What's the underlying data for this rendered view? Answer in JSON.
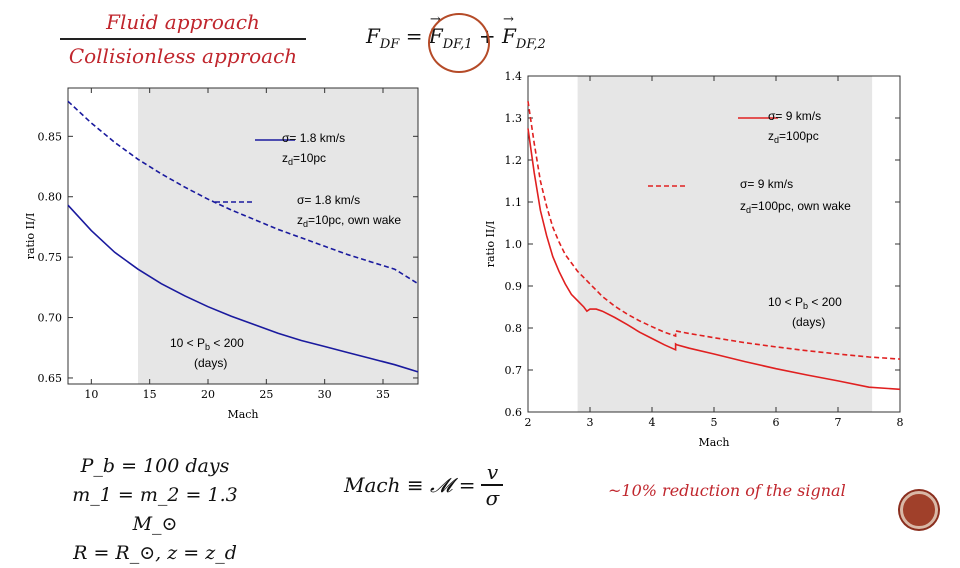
{
  "header": {
    "numerator": "Fluid approach",
    "denominator": "Collisionless approach",
    "force_lhs": "F",
    "force_lhs_sub": "DF",
    "force_eq": " = ",
    "force_term1": "F",
    "force_term1_sub": "DF,1",
    "force_plus": " + ",
    "force_term2": "F",
    "force_term2_sub": "DF,2"
  },
  "params": {
    "line1": "P_b = 100 days",
    "line2": "m_1 = m_2 = 1.3 M_⊙",
    "line3": "R = R_⊙, z = z_d"
  },
  "mach_definition": {
    "lhs": "Mach ≡ 𝓜 =",
    "num": "v",
    "den": "σ"
  },
  "reduction_note": "~10% reduction of the signal",
  "chart_data": [
    {
      "type": "line",
      "xlabel": "Mach",
      "ylabel": "ratio II/I",
      "xlim": [
        8,
        38
      ],
      "ylim": [
        0.645,
        0.89
      ],
      "xticks": [
        10,
        15,
        20,
        25,
        30,
        35
      ],
      "yticks": [
        0.65,
        0.7,
        0.75,
        0.8,
        0.85
      ],
      "shaded_region": [
        14,
        38
      ],
      "annotation_line1": "10 < P",
      "annotation_sub": "b",
      "annotation_line1_end": " < 200",
      "annotation_line2": "(days)",
      "color": "#1a1a9e",
      "series": [
        {
          "style": "solid",
          "legend_line1": "σ= 1.8 km/s",
          "legend_line2": "z",
          "legend_line2_sub": "d",
          "legend_line2_end": "=10pc",
          "x": [
            8,
            10,
            12,
            14,
            16,
            18,
            20,
            22,
            24,
            26,
            28,
            30,
            32,
            34,
            36,
            38
          ],
          "y": [
            0.793,
            0.772,
            0.754,
            0.74,
            0.728,
            0.718,
            0.709,
            0.701,
            0.694,
            0.687,
            0.681,
            0.676,
            0.671,
            0.666,
            0.661,
            0.655
          ]
        },
        {
          "style": "dashed",
          "legend_line1": "σ= 1.8 km/s",
          "legend_line2": "z",
          "legend_line2_sub": "d",
          "legend_line2_end": "=10pc, own wake",
          "x": [
            8,
            10,
            12,
            14,
            16,
            18,
            20,
            22,
            24,
            26,
            28,
            30,
            32,
            34,
            36,
            38
          ],
          "y": [
            0.879,
            0.861,
            0.845,
            0.831,
            0.819,
            0.808,
            0.798,
            0.789,
            0.781,
            0.773,
            0.766,
            0.759,
            0.752,
            0.746,
            0.74,
            0.728
          ]
        }
      ]
    },
    {
      "type": "line",
      "xlabel": "Mach",
      "ylabel": "ratio II/I",
      "xlim": [
        2,
        8
      ],
      "ylim": [
        0.6,
        1.4
      ],
      "xticks": [
        2,
        3,
        4,
        5,
        6,
        7,
        8
      ],
      "yticks": [
        0.6,
        0.7,
        0.8,
        0.9,
        1.0,
        1.1,
        1.2,
        1.3,
        1.4
      ],
      "shaded_region": [
        2.8,
        7.55
      ],
      "annotation_line1": "10 < P",
      "annotation_sub": "b",
      "annotation_line1_end": " < 200",
      "annotation_line2": "(days)",
      "color": "#e02020",
      "series": [
        {
          "style": "solid",
          "legend_line1": "σ= 9 km/s",
          "legend_line2": "z",
          "legend_line2_sub": "d",
          "legend_line2_end": "=100pc",
          "x": [
            2.0,
            2.1,
            2.2,
            2.3,
            2.4,
            2.5,
            2.6,
            2.7,
            2.8,
            2.9,
            2.95,
            3.0,
            3.1,
            3.2,
            3.4,
            3.6,
            3.8,
            4.0,
            4.2,
            4.38,
            4.38,
            4.4,
            4.6,
            5.0,
            5.5,
            6.0,
            6.5,
            7.0,
            7.5,
            8.0
          ],
          "y": [
            1.275,
            1.17,
            1.08,
            1.02,
            0.97,
            0.935,
            0.905,
            0.88,
            0.865,
            0.85,
            0.84,
            0.845,
            0.845,
            0.84,
            0.825,
            0.808,
            0.79,
            0.775,
            0.76,
            0.748,
            0.762,
            0.76,
            0.752,
            0.738,
            0.72,
            0.703,
            0.688,
            0.674,
            0.659,
            0.654
          ]
        },
        {
          "style": "dashed",
          "legend_line1": "σ= 9 km/s",
          "legend_line2": "z",
          "legend_line2_sub": "d",
          "legend_line2_end": "=100pc, own wake",
          "x": [
            2.0,
            2.1,
            2.2,
            2.3,
            2.4,
            2.5,
            2.6,
            2.7,
            2.8,
            2.9,
            3.0,
            3.2,
            3.4,
            3.6,
            3.8,
            4.0,
            4.2,
            4.38,
            4.38,
            4.6,
            5.0,
            5.5,
            6.0,
            6.5,
            7.0,
            7.5,
            8.0
          ],
          "y": [
            1.34,
            1.24,
            1.15,
            1.09,
            1.04,
            1.005,
            0.975,
            0.955,
            0.935,
            0.92,
            0.905,
            0.875,
            0.852,
            0.833,
            0.817,
            0.803,
            0.79,
            0.781,
            0.793,
            0.787,
            0.777,
            0.765,
            0.755,
            0.746,
            0.738,
            0.731,
            0.726
          ]
        }
      ]
    }
  ]
}
